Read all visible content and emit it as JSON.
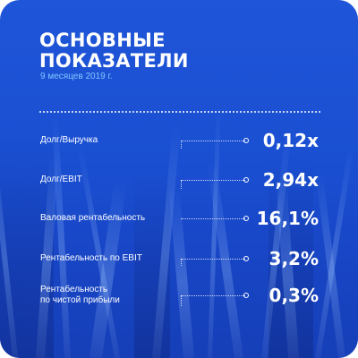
{
  "card": {
    "title_line1": "ОСНОВНЫЕ",
    "title_line2": "ПОКАЗАТЕЛИ",
    "subtitle": "9 месяцев 2019 г."
  },
  "metrics": [
    {
      "label": "Долг/Выручка",
      "value": "0,12x"
    },
    {
      "label": "Долг/EBIT",
      "value": "2,94x"
    },
    {
      "label": "Валовая рентабельность",
      "value": "16,1%"
    },
    {
      "label": "Рентабельность по EBIT",
      "value": "3,2%"
    },
    {
      "label_line1": "Рентабельность",
      "label_line2": "по чистой прибыли",
      "value": "0,3%"
    }
  ],
  "colors": {
    "background": "#1a4fd2",
    "text": "#ffffff",
    "subtitle": "#7fc8ff"
  }
}
